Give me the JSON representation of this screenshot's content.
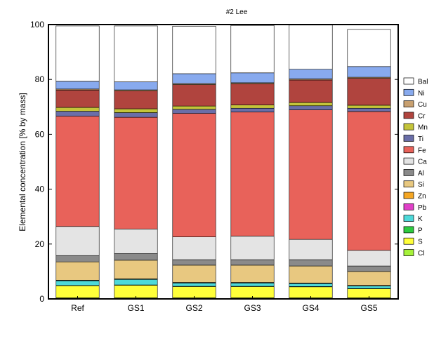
{
  "chart_data": {
    "type": "bar",
    "stacked": true,
    "title": "#2 Lee",
    "xlabel": "",
    "ylabel": "Elemental concentration [% by mass]",
    "ylim": [
      0,
      100
    ],
    "yticks": [
      0,
      20,
      40,
      60,
      80,
      100
    ],
    "grid": false,
    "legend_position": "right",
    "categories": [
      "Ref",
      "GS1",
      "GS2",
      "GS3",
      "GS4",
      "GS5"
    ],
    "series": [
      {
        "name": "Cl",
        "color": "#a6f23a",
        "values": [
          0.4,
          0.4,
          0.4,
          0.4,
          0.4,
          0.4
        ]
      },
      {
        "name": "S",
        "color": "#ffff3a",
        "values": [
          4.4,
          4.6,
          4.1,
          4.1,
          4.0,
          3.3
        ]
      },
      {
        "name": "P",
        "color": "#2ecc40",
        "values": [
          0.1,
          0.1,
          0.1,
          0.1,
          0.1,
          0.1
        ]
      },
      {
        "name": "K",
        "color": "#4dd9d9",
        "values": [
          1.7,
          2.0,
          1.2,
          1.2,
          1.1,
          0.9
        ]
      },
      {
        "name": "Pb",
        "color": "#e040c8",
        "values": [
          0.1,
          0.1,
          0.1,
          0.1,
          0.1,
          0.1
        ]
      },
      {
        "name": "Zn",
        "color": "#f5a623",
        "values": [
          0.1,
          0.1,
          0.1,
          0.1,
          0.1,
          0.1
        ]
      },
      {
        "name": "Si",
        "color": "#e8c880",
        "values": [
          6.7,
          6.8,
          6.3,
          6.3,
          6.2,
          5.1
        ]
      },
      {
        "name": "Al",
        "color": "#8a8a8a",
        "values": [
          2.3,
          2.4,
          2.0,
          2.0,
          2.3,
          2.0
        ]
      },
      {
        "name": "Ca",
        "color": "#e4e4e4",
        "values": [
          10.6,
          9.0,
          8.3,
          8.6,
          7.4,
          5.7
        ]
      },
      {
        "name": "Fe",
        "color": "#e8625a",
        "values": [
          40.2,
          40.7,
          45.0,
          45.2,
          47.2,
          50.6
        ]
      },
      {
        "name": "Ti",
        "color": "#6a6ea8",
        "values": [
          1.8,
          1.7,
          1.5,
          1.4,
          1.5,
          1.2
        ]
      },
      {
        "name": "Mn",
        "color": "#c4c43a",
        "values": [
          1.4,
          1.4,
          1.2,
          1.2,
          1.2,
          1.1
        ]
      },
      {
        "name": "Cr",
        "color": "#b0443e",
        "values": [
          6.3,
          6.5,
          7.8,
          7.7,
          8.2,
          9.8
        ]
      },
      {
        "name": "Cu",
        "color": "#c8a070",
        "values": [
          0.4,
          0.4,
          0.4,
          0.4,
          0.4,
          0.4
        ]
      },
      {
        "name": "Ni",
        "color": "#88aaee",
        "values": [
          2.8,
          2.9,
          3.6,
          3.6,
          3.5,
          3.9
        ]
      },
      {
        "name": "Bal",
        "color": "#ffffff",
        "values": [
          20.2,
          20.4,
          17.3,
          17.3,
          16.1,
          13.5
        ]
      }
    ]
  }
}
